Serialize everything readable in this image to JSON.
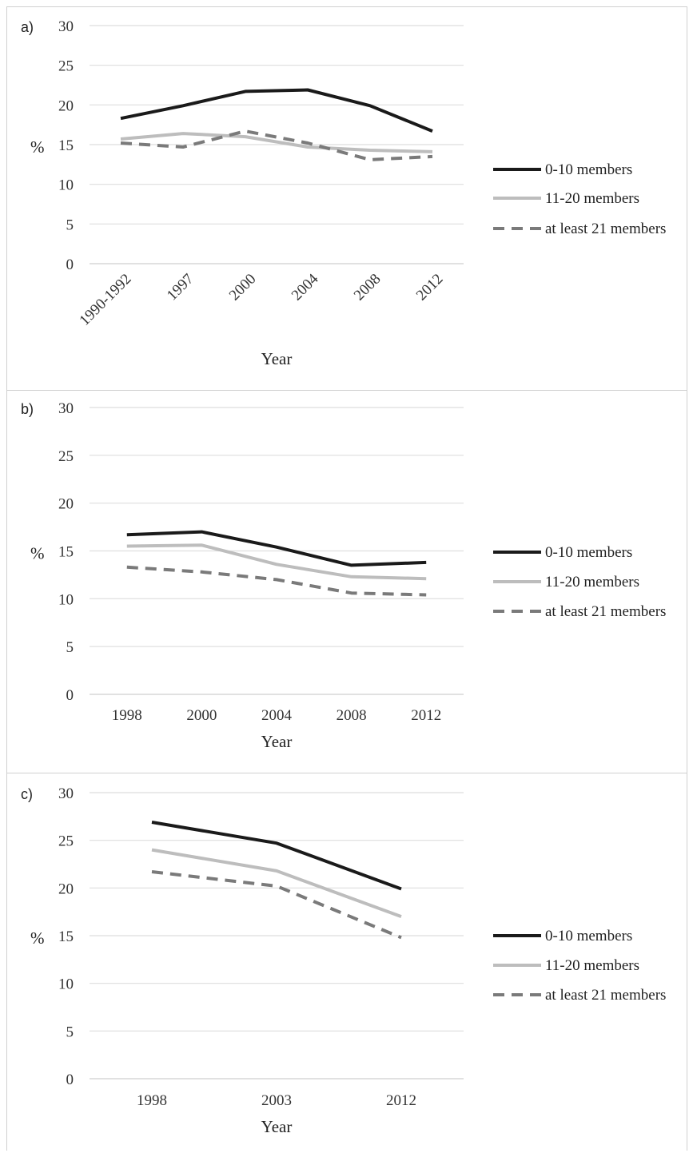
{
  "chart_data": [
    {
      "type": "line",
      "panel_label": "a)",
      "categories": [
        "1990-1992",
        "1997",
        "2000",
        "2004",
        "2008",
        "2012"
      ],
      "rotated_ticks": true,
      "xlabel": "Year",
      "ylabel": "%",
      "ylim": [
        0,
        30
      ],
      "yticks": [
        0,
        5,
        10,
        15,
        20,
        25,
        30
      ],
      "grid": true,
      "legend_position": "right",
      "series": [
        {
          "name": "0-10 members",
          "values": [
            18.3,
            19.9,
            21.7,
            21.9,
            19.9,
            16.7
          ],
          "color": "#1a1a1a",
          "dash": "solid"
        },
        {
          "name": "11-20 members",
          "values": [
            15.7,
            16.4,
            16.0,
            14.7,
            14.3,
            14.1
          ],
          "color": "#bdbdbd",
          "dash": "solid"
        },
        {
          "name": "at least 21 members",
          "values": [
            15.2,
            14.7,
            16.7,
            15.2,
            13.1,
            13.5
          ],
          "color": "#7a7a7a",
          "dash": "dashed"
        }
      ]
    },
    {
      "type": "line",
      "panel_label": "b)",
      "categories": [
        "1998",
        "2000",
        "2004",
        "2008",
        "2012"
      ],
      "rotated_ticks": false,
      "xlabel": "Year",
      "ylabel": "%",
      "ylim": [
        0,
        30
      ],
      "yticks": [
        0,
        5,
        10,
        15,
        20,
        25,
        30
      ],
      "grid": true,
      "legend_position": "right",
      "series": [
        {
          "name": "0-10 members",
          "values": [
            16.7,
            17.0,
            15.4,
            13.5,
            13.8
          ],
          "color": "#1a1a1a",
          "dash": "solid"
        },
        {
          "name": "11-20 members",
          "values": [
            15.5,
            15.6,
            13.6,
            12.3,
            12.1
          ],
          "color": "#bdbdbd",
          "dash": "solid"
        },
        {
          "name": "at least 21 members",
          "values": [
            13.3,
            12.8,
            12.0,
            10.6,
            10.4
          ],
          "color": "#7a7a7a",
          "dash": "dashed"
        }
      ]
    },
    {
      "type": "line",
      "panel_label": "c)",
      "categories": [
        "1998",
        "2003",
        "2012"
      ],
      "rotated_ticks": false,
      "xlabel": "Year",
      "ylabel": "%",
      "ylim": [
        0,
        30
      ],
      "yticks": [
        0,
        5,
        10,
        15,
        20,
        25,
        30
      ],
      "grid": true,
      "legend_position": "right",
      "series": [
        {
          "name": "0-10 members",
          "values": [
            26.9,
            24.7,
            19.9
          ],
          "color": "#1a1a1a",
          "dash": "solid"
        },
        {
          "name": "11-20 members",
          "values": [
            24.0,
            21.8,
            17.0
          ],
          "color": "#bdbdbd",
          "dash": "solid"
        },
        {
          "name": "at least 21 members",
          "values": [
            21.7,
            20.2,
            14.8
          ],
          "color": "#7a7a7a",
          "dash": "dashed"
        }
      ]
    }
  ]
}
